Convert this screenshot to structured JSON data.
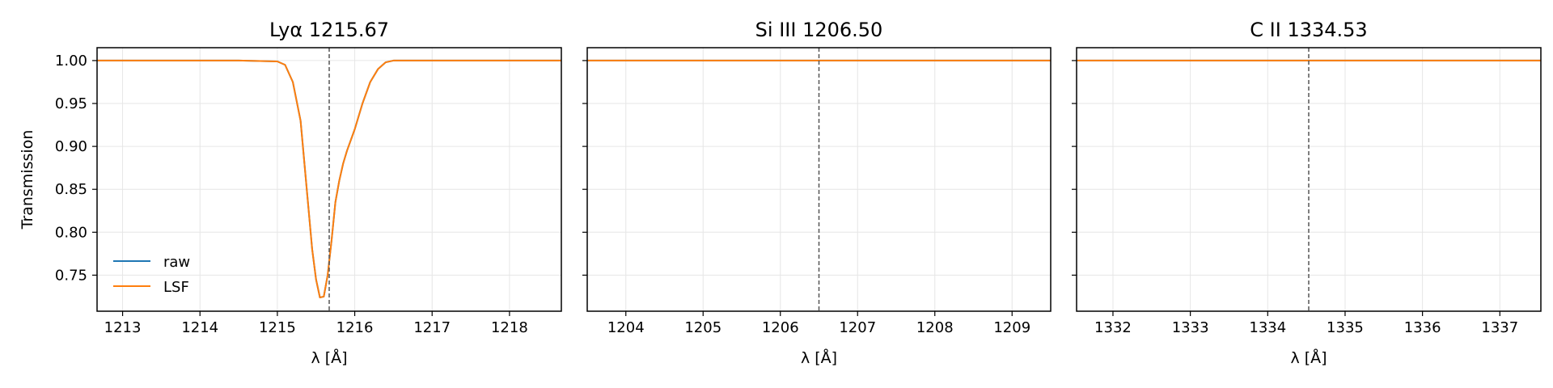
{
  "figure": {
    "ylabel": "Transmission"
  },
  "colors": {
    "raw": "#1f77b4",
    "lsf": "#ff7f0e",
    "grid": "#e6e6e6",
    "line_center": "#555555"
  },
  "legend": {
    "placement": "lower-left",
    "entries": [
      "raw",
      "LSF"
    ]
  },
  "chart_data": [
    {
      "type": "line",
      "title": "Lyα 1215.67",
      "xlabel": "λ [Å]",
      "ylabel": "Transmission",
      "xlim": [
        1212.67,
        1218.67
      ],
      "ylim": [
        0.708,
        1.015
      ],
      "xticks": [
        1213,
        1214,
        1215,
        1216,
        1217,
        1218
      ],
      "yticks": [
        0.75,
        0.8,
        0.85,
        0.9,
        0.95,
        1.0
      ],
      "ytick_labels": [
        "0.75",
        "0.80",
        "0.85",
        "0.90",
        "0.95",
        "1.00"
      ],
      "grid": true,
      "center": 1215.67,
      "series": [
        {
          "name": "raw",
          "x": [
            1212.67,
            1214.5,
            1215.0,
            1215.1,
            1215.2,
            1215.3,
            1215.35,
            1215.4,
            1215.45,
            1215.5,
            1215.55,
            1215.6,
            1215.65,
            1215.7,
            1215.75,
            1215.8,
            1215.85,
            1215.9,
            1216.0,
            1216.1,
            1216.2,
            1216.3,
            1216.4,
            1216.5,
            1218.67
          ],
          "y": [
            1.0,
            1.0,
            0.999,
            0.995,
            0.975,
            0.93,
            0.88,
            0.83,
            0.78,
            0.745,
            0.724,
            0.725,
            0.75,
            0.79,
            0.835,
            0.86,
            0.88,
            0.895,
            0.92,
            0.95,
            0.975,
            0.99,
            0.998,
            1.0,
            1.0
          ]
        },
        {
          "name": "LSF",
          "x": [
            1212.67,
            1214.5,
            1215.0,
            1215.1,
            1215.2,
            1215.3,
            1215.35,
            1215.4,
            1215.45,
            1215.5,
            1215.55,
            1215.6,
            1215.65,
            1215.7,
            1215.75,
            1215.8,
            1215.85,
            1215.9,
            1216.0,
            1216.1,
            1216.2,
            1216.3,
            1216.4,
            1216.5,
            1218.67
          ],
          "y": [
            1.0,
            1.0,
            0.999,
            0.995,
            0.975,
            0.93,
            0.88,
            0.83,
            0.78,
            0.745,
            0.724,
            0.725,
            0.75,
            0.79,
            0.835,
            0.86,
            0.88,
            0.895,
            0.92,
            0.95,
            0.975,
            0.99,
            0.998,
            1.0,
            1.0
          ]
        }
      ]
    },
    {
      "type": "line",
      "title": "Si III 1206.50",
      "xlabel": "λ [Å]",
      "xlim": [
        1203.5,
        1209.5
      ],
      "ylim": [
        0.708,
        1.015
      ],
      "xticks": [
        1204,
        1205,
        1206,
        1207,
        1208,
        1209
      ],
      "yticks": [
        0.75,
        0.8,
        0.85,
        0.9,
        0.95,
        1.0
      ],
      "grid": true,
      "center": 1206.5,
      "series": [
        {
          "name": "raw",
          "x": [
            1203.5,
            1209.5
          ],
          "y": [
            1.0,
            1.0
          ]
        },
        {
          "name": "LSF",
          "x": [
            1203.5,
            1209.5
          ],
          "y": [
            1.0,
            1.0
          ]
        }
      ]
    },
    {
      "type": "line",
      "title": "C II 1334.53",
      "xlabel": "λ [Å]",
      "xlim": [
        1331.53,
        1337.53
      ],
      "ylim": [
        0.708,
        1.015
      ],
      "xticks": [
        1332,
        1333,
        1334,
        1335,
        1336,
        1337
      ],
      "yticks": [
        0.75,
        0.8,
        0.85,
        0.9,
        0.95,
        1.0
      ],
      "grid": true,
      "center": 1334.53,
      "series": [
        {
          "name": "raw",
          "x": [
            1331.53,
            1337.53
          ],
          "y": [
            1.0,
            1.0
          ]
        },
        {
          "name": "LSF",
          "x": [
            1331.53,
            1337.53
          ],
          "y": [
            1.0,
            1.0
          ]
        }
      ]
    }
  ]
}
